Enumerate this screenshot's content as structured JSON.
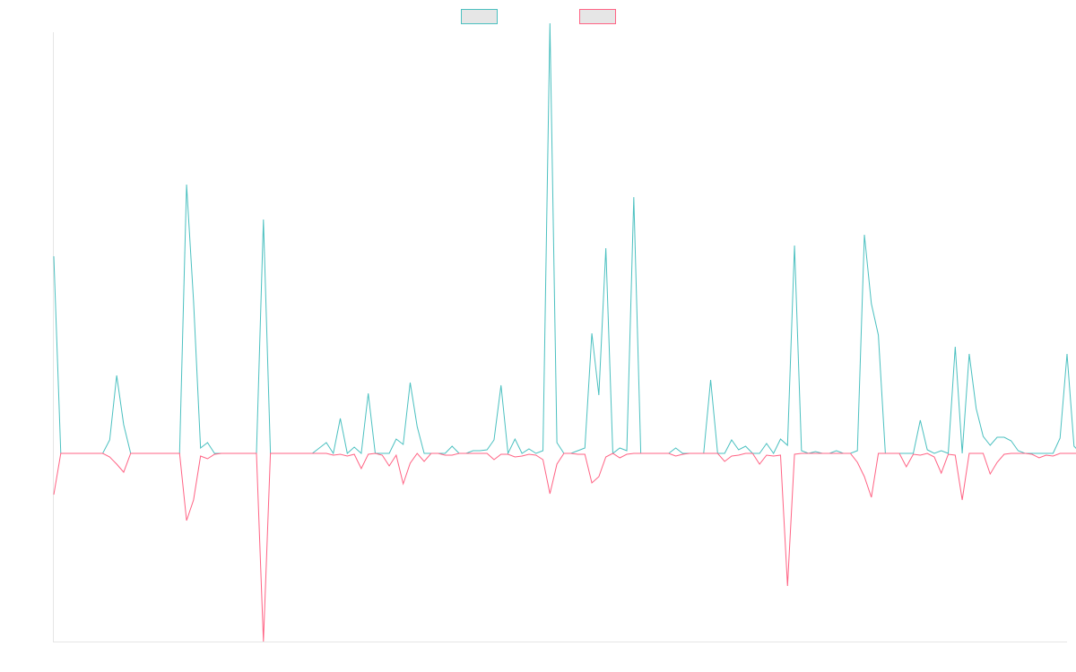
{
  "chart_data": {
    "type": "line",
    "title": "",
    "xlabel": "",
    "ylabel": "",
    "grid": false,
    "legend_position": "top-center",
    "x_count": 146,
    "ylim": [
      -21.0,
      47.0
    ],
    "series": [
      {
        "name": "",
        "color": "#4bc0c0",
        "fill": "#e6e6e6",
        "values": [
          22.0,
          0.0,
          0.0,
          0.0,
          0.0,
          0.0,
          0.0,
          0.0,
          1.5,
          8.7,
          3.2,
          0.0,
          0.0,
          0.0,
          0.0,
          0.0,
          0.0,
          0.0,
          0.0,
          30.0,
          17.0,
          0.6,
          1.2,
          0.0,
          0.0,
          0.0,
          0.0,
          0.0,
          0.0,
          0.0,
          26.1,
          0.0,
          0.0,
          0.0,
          0.0,
          0.0,
          0.0,
          0.0,
          0.6,
          1.2,
          0.0,
          3.9,
          0.0,
          0.7,
          0.0,
          6.7,
          0.0,
          0.0,
          0.0,
          1.6,
          1.0,
          7.9,
          3.0,
          0.0,
          0.0,
          0.0,
          0.0,
          0.8,
          0.0,
          0.0,
          0.3,
          0.3,
          0.4,
          1.5,
          7.6,
          0.0,
          1.6,
          0.0,
          0.5,
          0.0,
          0.3,
          48.0,
          1.2,
          0.0,
          0.0,
          0.3,
          0.6,
          13.4,
          6.5,
          22.9,
          0.0,
          0.6,
          0.3,
          28.6,
          0.0,
          0.0,
          0.0,
          0.0,
          0.0,
          0.6,
          0.0,
          0.0,
          0.0,
          0.0,
          8.2,
          0.0,
          0.0,
          1.5,
          0.4,
          0.8,
          0.0,
          0.0,
          1.1,
          0.0,
          1.6,
          0.9,
          23.2,
          0.3,
          0.0,
          0.2,
          0.0,
          0.0,
          0.3,
          0.0,
          0.0,
          0.3,
          24.4,
          16.7,
          13.2,
          0.0,
          0.0,
          0.0,
          0.0,
          0.0,
          3.7,
          0.4,
          0.0,
          0.3,
          0.0,
          11.9,
          0.0,
          11.1,
          5.0,
          1.9,
          0.9,
          1.8,
          1.8,
          1.4,
          0.3,
          0.0,
          0.0,
          0.0,
          0.0,
          0.0,
          1.7,
          11.1,
          0.8,
          0.0,
          0.7,
          0.0,
          0.0,
          0.0
        ]
      },
      {
        "name": "",
        "color": "#ff6384",
        "fill": "#e6e6e6",
        "values": [
          -4.6,
          0.0,
          0.0,
          0.0,
          0.0,
          0.0,
          0.0,
          0.0,
          -0.4,
          -1.2,
          -2.1,
          0.0,
          0.0,
          0.0,
          0.0,
          0.0,
          0.0,
          0.0,
          0.0,
          -7.5,
          -5.2,
          -0.3,
          -0.6,
          -0.1,
          0.0,
          0.0,
          0.0,
          0.0,
          0.0,
          0.0,
          -21.0,
          0.0,
          0.0,
          0.0,
          0.0,
          0.0,
          0.0,
          0.0,
          0.0,
          0.0,
          -0.2,
          -0.1,
          -0.3,
          -0.1,
          -1.7,
          -0.1,
          0.0,
          -0.2,
          -1.4,
          -0.2,
          -3.4,
          -1.1,
          0.0,
          -0.9,
          0.0,
          0.0,
          -0.2,
          -0.2,
          0.0,
          0.0,
          0.0,
          0.0,
          0.0,
          -0.7,
          -0.1,
          -0.1,
          -0.4,
          -0.3,
          -0.1,
          -0.2,
          -0.7,
          -4.5,
          -1.2,
          0.0,
          0.0,
          -0.1,
          -0.1,
          -3.3,
          -2.6,
          -0.4,
          0.0,
          -0.5,
          -0.1,
          0.0,
          0.0,
          0.0,
          0.0,
          0.0,
          0.0,
          -0.3,
          -0.1,
          0.0,
          0.0,
          0.0,
          0.0,
          0.0,
          -0.9,
          -0.3,
          -0.2,
          0.0,
          0.0,
          -1.2,
          -0.2,
          -0.3,
          -0.2,
          -14.8,
          -0.1,
          0.0,
          0.0,
          0.0,
          0.0,
          0.0,
          0.0,
          0.0,
          0.0,
          -1.0,
          -2.6,
          -4.9,
          0.0,
          0.0,
          0.0,
          0.0,
          -1.5,
          -0.1,
          -0.2,
          0.0,
          -0.4,
          -2.2,
          -0.1,
          -0.2,
          -5.2,
          0.0,
          0.0,
          0.0,
          -2.3,
          -1.0,
          -0.1,
          0.0,
          0.0,
          0.0,
          -0.1,
          -0.5,
          -0.2,
          -0.3,
          0.0,
          0.0,
          0.0,
          0.0
        ]
      }
    ]
  }
}
